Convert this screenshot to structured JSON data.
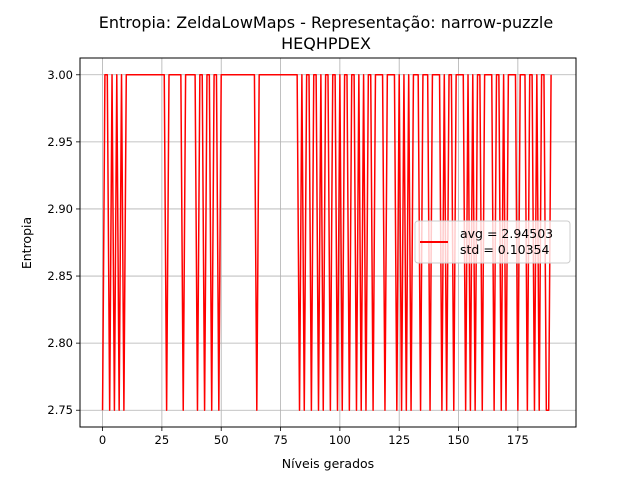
{
  "chart_data": {
    "type": "line",
    "title_line1": "Entropia: ZeldaLowMaps - Representação: narrow-puzzle",
    "title_line2": "HEQHPDEX",
    "xlabel": "Níveis gerados",
    "ylabel": "Entropia",
    "xlim": [
      -9.5,
      199.5
    ],
    "ylim": [
      2.7375,
      3.0125
    ],
    "xticks": [
      0,
      25,
      50,
      75,
      100,
      125,
      150,
      175
    ],
    "yticks": [
      2.75,
      2.8,
      2.85,
      2.9,
      2.95,
      3.0
    ],
    "ytick_labels": [
      "2.75",
      "2.80",
      "2.85",
      "2.90",
      "2.95",
      "3.00"
    ],
    "grid": true,
    "legend_position": "right",
    "legend": [
      "avg = 2.94503",
      "std = 0.10354"
    ],
    "line_color": "#ff0000",
    "series": [
      {
        "low_value": 2.75,
        "high_value": 3.0,
        "x_start": 0,
        "x_end": 189,
        "low_points": [
          0,
          3,
          5,
          7,
          9,
          27,
          34,
          40,
          43,
          46,
          49,
          65,
          83,
          85,
          88,
          91,
          93,
          96,
          99,
          101,
          104,
          107,
          109,
          111,
          114,
          119,
          124,
          126,
          128,
          130,
          134,
          138,
          143,
          145,
          148,
          153,
          155,
          157,
          160,
          165,
          168,
          170,
          175,
          179,
          182,
          184,
          187,
          188
        ]
      }
    ]
  }
}
